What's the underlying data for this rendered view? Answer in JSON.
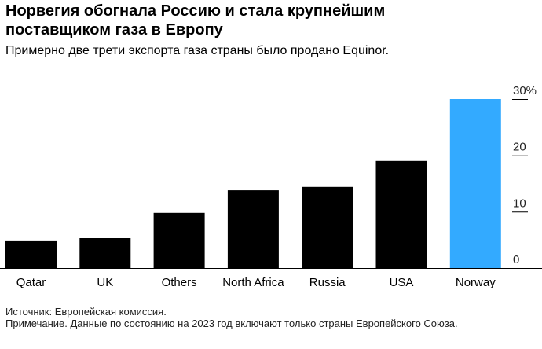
{
  "chart_data": {
    "type": "bar",
    "title": "Норвегия обогнала Россию и стала крупнейшим поставщиком газа в Европу",
    "subtitle": "Примерно две трети экспорта газа страны было продано Equinor.",
    "categories": [
      "Qatar",
      "UK",
      "Others",
      "North Africa",
      "Russia",
      "USA",
      "Norway"
    ],
    "values": [
      4.9,
      5.3,
      9.8,
      13.8,
      14.4,
      19.0,
      30.0
    ],
    "bar_colors": [
      "#000000",
      "#000000",
      "#000000",
      "#000000",
      "#000000",
      "#000000",
      "#33aaff"
    ],
    "yticks": [
      0,
      10,
      20,
      30
    ],
    "ytick_labels": [
      "0",
      "10",
      "20",
      "30%"
    ],
    "ylim": [
      0,
      30
    ],
    "xlabel": "",
    "ylabel": "",
    "y_axis_side": "right",
    "grid": false
  },
  "footer": {
    "source": "Источник: Европейская комиссия.",
    "note": "Примечание. Данные по состоянию на 2023 год включают только страны Европейского Союза."
  }
}
